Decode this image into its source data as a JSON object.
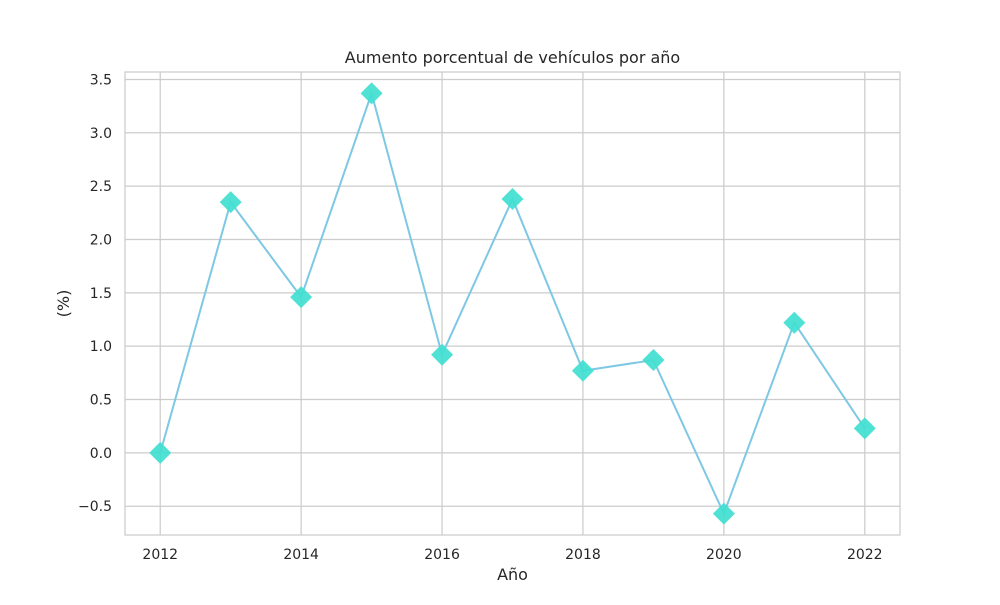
{
  "chart_data": {
    "type": "line",
    "title": "Aumento porcentual de vehículos por año",
    "xlabel": "Año",
    "ylabel": "(%)",
    "x": [
      2012,
      2013,
      2014,
      2015,
      2016,
      2017,
      2018,
      2019,
      2020,
      2021,
      2022
    ],
    "series": [
      {
        "values": [
          0.0,
          2.35,
          1.46,
          3.37,
          0.92,
          2.38,
          0.77,
          0.87,
          -0.57,
          1.22,
          0.23
        ],
        "line_color": "#7ec8e3",
        "marker_color": "#40e0d0",
        "marker": "diamond"
      }
    ],
    "xlim": [
      2011.5,
      2022.5
    ],
    "ylim": [
      -0.77,
      3.57
    ],
    "xticks": [
      "2012",
      "2014",
      "2016",
      "2018",
      "2020",
      "2022"
    ],
    "yticks": [
      "−0.5",
      "0.0",
      "0.5",
      "1.0",
      "1.5",
      "2.0",
      "2.5",
      "3.0",
      "3.5"
    ],
    "grid": true,
    "legend": false
  }
}
